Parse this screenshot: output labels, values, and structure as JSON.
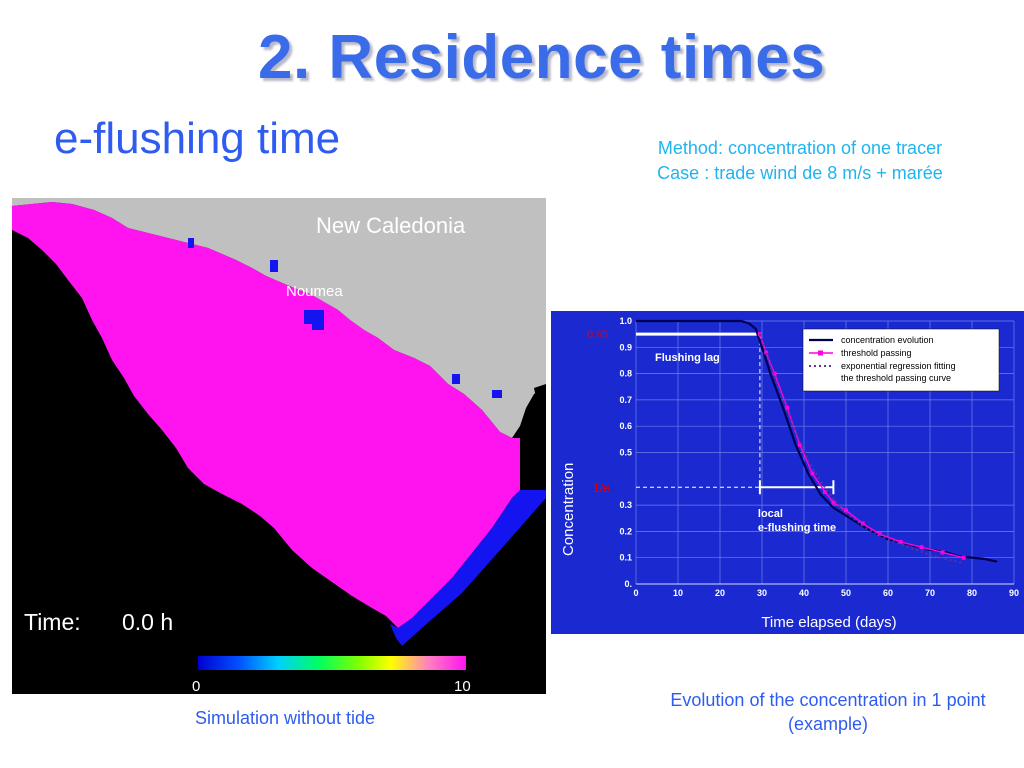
{
  "slide": {
    "title": "2. Residence times",
    "subtitle": "e-flushing time",
    "method_line1": "Method: concentration of one tracer",
    "method_line2": "Case : trade wind de 8 m/s + marée"
  },
  "map": {
    "region_label": "New Caledonia",
    "city_label": "Noumea",
    "time_label": "Time:",
    "time_value": "0.0 h",
    "colorbar_min": "0",
    "colorbar_max": "10",
    "caption": "Simulation without tide",
    "colors": {
      "land": "#c0c0c0",
      "ocean": "#000000",
      "lagoon": "#ff14f0",
      "open_boundary": "#1414f0"
    }
  },
  "chart_caption_line1": "Evolution of the concentration in 1 point",
  "chart_caption_line2": "(example)",
  "chart_data": {
    "type": "line",
    "xlabel": "Time elapsed (days)",
    "ylabel": "Concentration",
    "xlim": [
      0,
      90
    ],
    "ylim": [
      0,
      1.0
    ],
    "x_ticks": [
      "0",
      "10",
      "20",
      "30",
      "40",
      "50",
      "60",
      "70",
      "80",
      "90"
    ],
    "y_ticks": [
      {
        "v": 0,
        "label": "0."
      },
      {
        "v": 0.1,
        "label": "0.1"
      },
      {
        "v": 0.2,
        "label": "0.2"
      },
      {
        "v": 0.3,
        "label": "0.3"
      },
      {
        "v": 0.5,
        "label": "0.5"
      },
      {
        "v": 0.6,
        "label": "0.6"
      },
      {
        "v": 0.7,
        "label": "0.7"
      },
      {
        "v": 0.8,
        "label": "0.8"
      },
      {
        "v": 0.9,
        "label": "0.9"
      },
      {
        "v": 1.0,
        "label": "1.0"
      }
    ],
    "grid": true,
    "background": "#1a2ad0",
    "legend_position": "top-right",
    "series": [
      {
        "name": "concentration evolution",
        "color": "#000050",
        "style": "solid",
        "x": [
          0,
          10,
          20,
          25,
          27,
          28.5,
          30,
          32,
          35,
          38,
          41,
          44,
          47,
          50,
          55,
          60,
          65,
          70,
          74,
          77,
          80,
          83,
          86
        ],
        "y": [
          1.0,
          1.0,
          1.0,
          1.0,
          0.99,
          0.97,
          0.9,
          0.8,
          0.67,
          0.53,
          0.42,
          0.34,
          0.29,
          0.26,
          0.21,
          0.17,
          0.15,
          0.13,
          0.12,
          0.105,
          0.1,
          0.095,
          0.085
        ]
      },
      {
        "name": "threshold passing",
        "color": "#ff00e0",
        "style": "markers",
        "x": [
          29.5,
          31,
          33,
          36,
          39,
          42,
          45,
          47,
          50,
          54,
          58,
          63,
          68,
          73,
          78
        ],
        "y": [
          0.95,
          0.88,
          0.8,
          0.67,
          0.53,
          0.42,
          0.35,
          0.31,
          0.28,
          0.23,
          0.19,
          0.16,
          0.14,
          0.12,
          0.1
        ]
      },
      {
        "name": "exponential regression fitting the threshold passing curve",
        "color": "#6030a0",
        "style": "dotted",
        "x": [
          29.5,
          32,
          35,
          38,
          41,
          44,
          47,
          50,
          55,
          60,
          65,
          70,
          75,
          78
        ],
        "y": [
          0.95,
          0.83,
          0.7,
          0.58,
          0.47,
          0.39,
          0.32,
          0.27,
          0.21,
          0.17,
          0.14,
          0.11,
          0.09,
          0.08
        ]
      }
    ],
    "annotations": {
      "threshold_095_label": "0.95",
      "threshold_1e_label": "1/e",
      "threshold_095": 0.95,
      "threshold_1e": 0.368,
      "flushing_lag_label": "Flushing lag",
      "flushing_lag_end": 29.5,
      "local_label_line1": "local",
      "local_label_line2": "e-flushing time",
      "e_flushing_start": 29.5,
      "e_flushing_end": 47
    }
  }
}
